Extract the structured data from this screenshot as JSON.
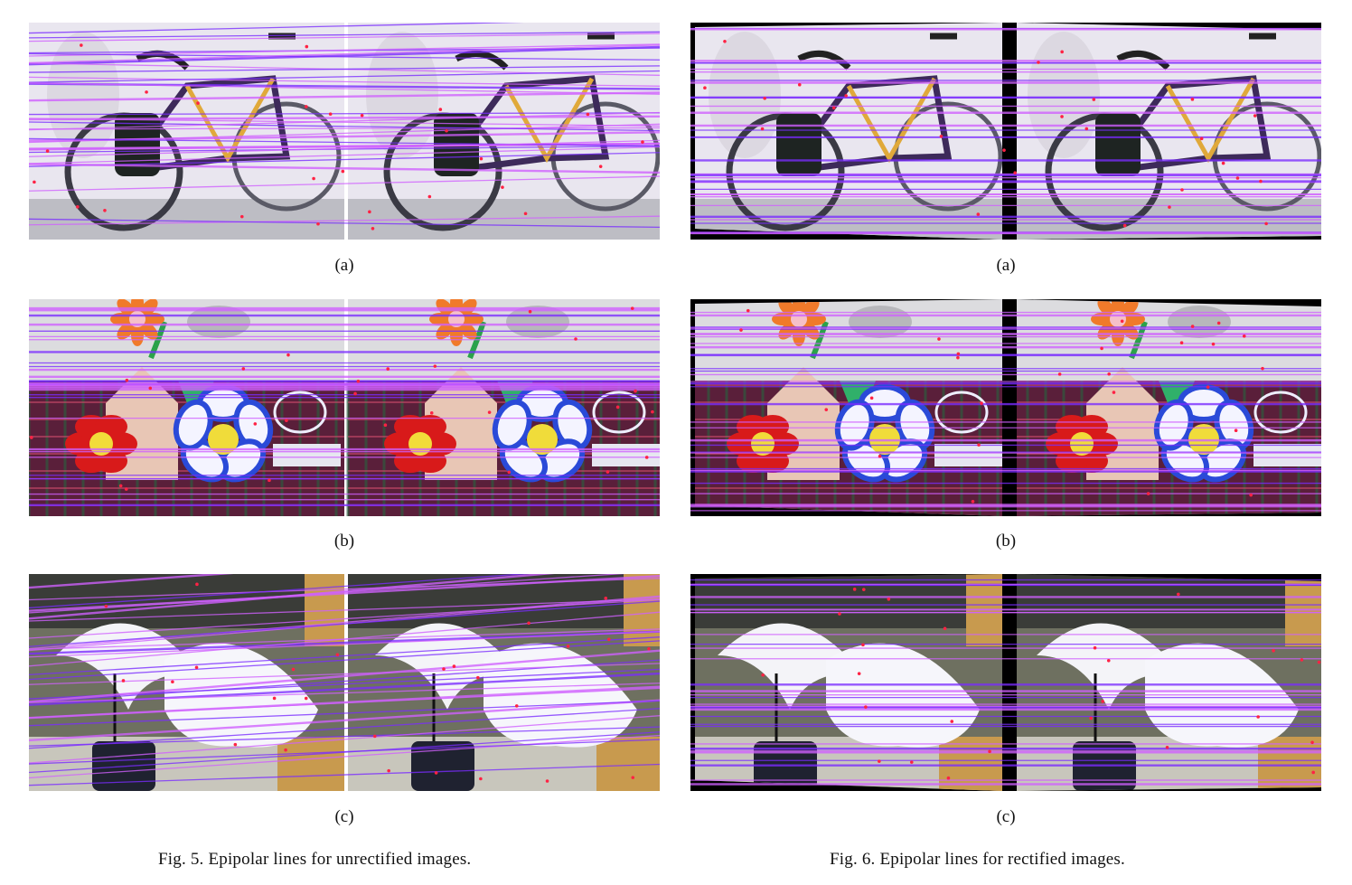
{
  "figures": [
    {
      "caption": "Fig. 5.  Epipolar lines for unrectified images.",
      "rectified": false,
      "panels": [
        {
          "label": "(a)",
          "scene": "bicycle"
        },
        {
          "label": "(b)",
          "scene": "flowers"
        },
        {
          "label": "(c)",
          "scene": "umbrellas"
        }
      ]
    },
    {
      "caption": "Fig. 6.  Epipolar lines for rectified images.",
      "rectified": true,
      "panels": [
        {
          "label": "(a)",
          "scene": "bicycle"
        },
        {
          "label": "(b)",
          "scene": "flowers"
        },
        {
          "label": "(c)",
          "scene": "umbrellas"
        }
      ]
    }
  ],
  "colors": {
    "epipolar_violet": "#7a2cff",
    "epipolar_pink": "#d060ff",
    "point_red": "#ff2244"
  }
}
